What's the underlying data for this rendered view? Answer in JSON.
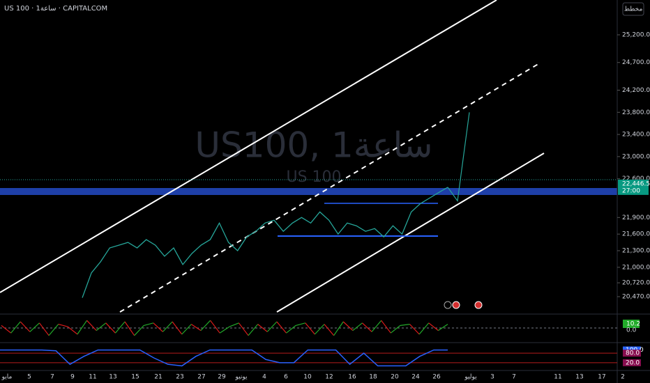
{
  "header": {
    "symbol": "US 100 · 1ساعة · CAPITALCOM",
    "button": "مخطط"
  },
  "watermark": {
    "title": "US100, 1ساعة",
    "subtitle": "US 100"
  },
  "price": {
    "type": "line",
    "color": "#26a69a",
    "values": [
      20450,
      20900,
      21100,
      21350,
      21400,
      21450,
      21350,
      21500,
      21400,
      21200,
      21350,
      21050,
      21250,
      21400,
      21500,
      21800,
      21450,
      21300,
      21550,
      21650,
      21800,
      21850,
      21650,
      21800,
      21900,
      21800,
      22000,
      21850,
      21600,
      21800,
      21750,
      21650,
      21700,
      21550,
      21750,
      21600,
      22000,
      22150,
      22250,
      22350,
      22446.5
    ],
    "ylim": [
      20168,
      25829
    ],
    "yticks": [
      {
        "value": 25200,
        "label": "25,200.0"
      },
      {
        "value": 24700,
        "label": "24,700.0"
      },
      {
        "value": 24200,
        "label": "24,200.0"
      },
      {
        "value": 23800,
        "label": "23,800.0"
      },
      {
        "value": 23400,
        "label": "23,400.0"
      },
      {
        "value": 23000,
        "label": "23,000.0"
      },
      {
        "value": 22600,
        "label": "22,600.0"
      },
      {
        "value": 21900,
        "label": "21,900.0"
      },
      {
        "value": 21600,
        "label": "21,600.0"
      },
      {
        "value": 21300,
        "label": "21,300.0"
      },
      {
        "value": 21000,
        "label": "21,000.0"
      },
      {
        "value": 20720,
        "label": "20,720.0"
      },
      {
        "value": 20470,
        "label": "20,470.0"
      }
    ],
    "last_price": {
      "value": 22446.5,
      "label": "22,446.5"
    },
    "countdown": "27:00"
  },
  "projection": {
    "color": "#26a69a",
    "values": [
      22446.5,
      22200,
      23800
    ]
  },
  "x_axis": {
    "labels": [
      "مايو",
      "5",
      "7",
      "9",
      "11",
      "13",
      "15",
      "21",
      "23",
      "27",
      "29",
      "يونيو",
      "4",
      "6",
      "10",
      "12",
      "16",
      "18",
      "20",
      "24",
      "26",
      "يوليو",
      "3",
      "7",
      "11",
      "13",
      "17",
      "2"
    ]
  },
  "oscillator": {
    "ylim": [
      -100,
      100
    ],
    "values": [
      20,
      -40,
      50,
      -30,
      40,
      -60,
      30,
      10,
      -50,
      60,
      -20,
      40,
      -40,
      50,
      -60,
      20,
      40,
      -30,
      50,
      -50,
      30,
      -20,
      60,
      -40,
      10,
      40,
      -60,
      30,
      -30,
      50,
      -40,
      20,
      40,
      -50,
      30,
      -60,
      50,
      -20,
      40,
      -30,
      60,
      -40,
      20,
      30,
      -50,
      40,
      -20,
      30
    ],
    "label": "10.2",
    "zero_label": "0.0"
  },
  "rsi": {
    "color": "#2962ff",
    "ylim": [
      -20,
      120
    ],
    "values": [
      100,
      100,
      100,
      100,
      95,
      10,
      60,
      100,
      100,
      100,
      100,
      50,
      10,
      0,
      60,
      100,
      100,
      100,
      100,
      40,
      20,
      20,
      100,
      100,
      100,
      10,
      80,
      0,
      0,
      0,
      60,
      100,
      100
    ],
    "ticks": [
      {
        "value": 100,
        "label": "100.0"
      },
      {
        "value": 80,
        "label": "80.0"
      },
      {
        "value": 20,
        "label": "20.0"
      }
    ]
  }
}
